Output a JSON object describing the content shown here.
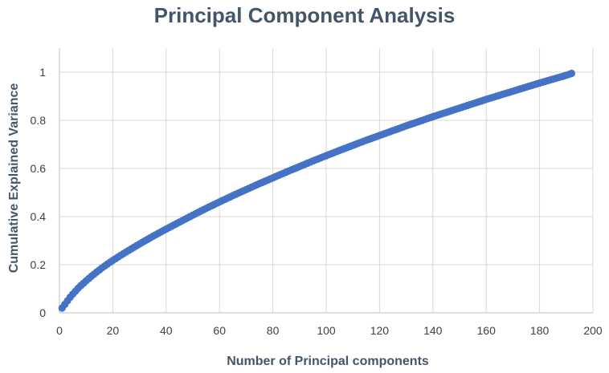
{
  "chart_data": {
    "type": "scatter",
    "title": "Principal Component Analysis",
    "xlabel": "Number of Principal components",
    "ylabel": "Cumulative Explained Variance",
    "xlim": [
      0,
      200
    ],
    "ylim": [
      0,
      1.1
    ],
    "x_ticks": [
      "0",
      "20",
      "40",
      "60",
      "80",
      "100",
      "120",
      "140",
      "160",
      "180",
      "200"
    ],
    "y_ticks": [
      "0",
      "0.2",
      "0.4",
      "0.6",
      "0.8",
      "1"
    ],
    "grid": true,
    "legend": "none",
    "marker_color": "#4472c4",
    "series": [
      {
        "x": [
          1,
          2,
          3,
          4,
          5,
          6,
          7,
          8,
          9,
          10,
          12,
          14,
          16,
          18,
          20,
          25,
          30,
          35,
          40,
          45,
          50,
          55,
          60,
          65,
          70,
          75,
          80,
          85,
          90,
          95,
          100,
          105,
          110,
          115,
          120,
          125,
          130,
          135,
          140,
          145,
          150,
          155,
          160,
          165,
          170,
          175,
          180,
          185,
          190,
          192
        ],
        "y": [
          0.02,
          0.035,
          0.05,
          0.065,
          0.078,
          0.09,
          0.102,
          0.113,
          0.123,
          0.133,
          0.152,
          0.17,
          0.187,
          0.203,
          0.218,
          0.253,
          0.286,
          0.318,
          0.348,
          0.377,
          0.406,
          0.434,
          0.461,
          0.487,
          0.512,
          0.537,
          0.561,
          0.585,
          0.608,
          0.631,
          0.653,
          0.675,
          0.696,
          0.717,
          0.737,
          0.757,
          0.777,
          0.796,
          0.815,
          0.833,
          0.851,
          0.869,
          0.887,
          0.904,
          0.921,
          0.938,
          0.955,
          0.971,
          0.987,
          0.995
        ]
      }
    ]
  }
}
